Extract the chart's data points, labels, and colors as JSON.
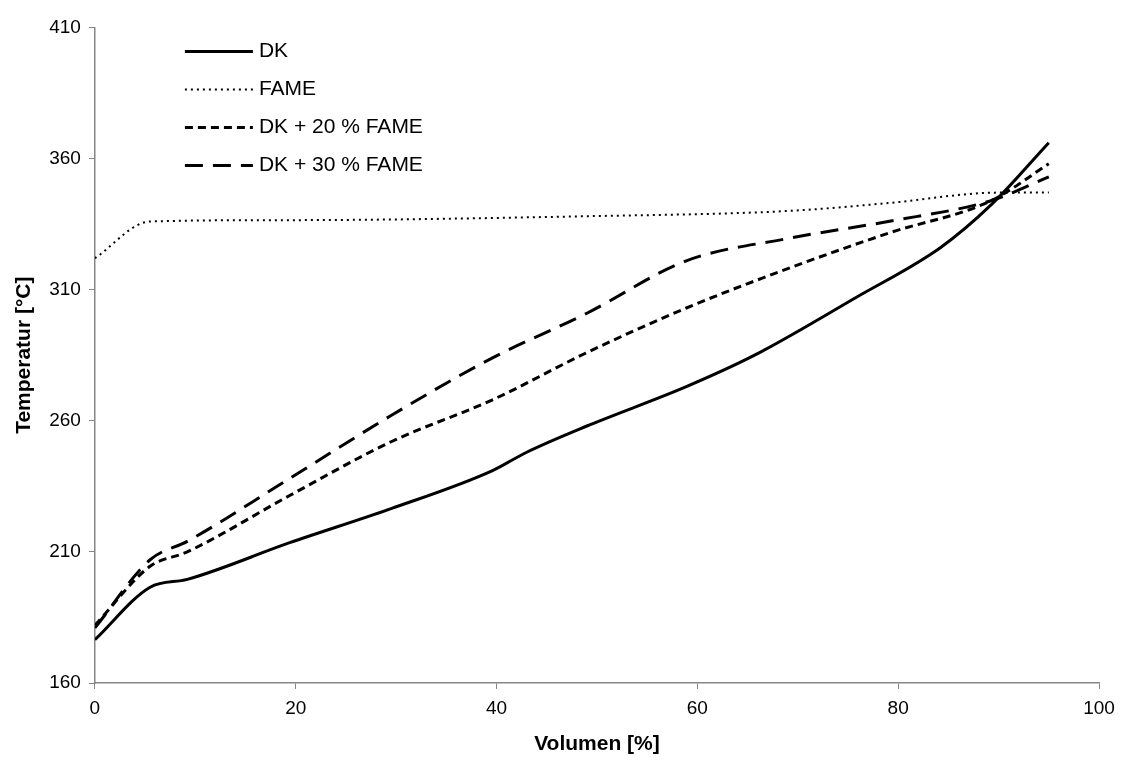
{
  "chart_data": {
    "type": "line",
    "xlabel": "Volumen [%]",
    "ylabel": "Temperatur [°C]",
    "xlim": [
      0,
      100
    ],
    "xticks": [
      0,
      20,
      40,
      60,
      80,
      100
    ],
    "ylim": [
      160,
      410
    ],
    "yticks": [
      160,
      210,
      260,
      310,
      360,
      410
    ],
    "grid": false,
    "legend": "top left",
    "marker": "none",
    "series": [
      {
        "name": "DK",
        "color": "#000000",
        "line_style": "solid",
        "x": [
          0,
          5.5,
          9.2,
          19.4,
          29.5,
          39.6,
          43,
          49,
          58.9,
          65.7,
          75.8,
          84.2,
          89.3,
          95
        ],
        "values": [
          176.5,
          196.5,
          199.5,
          213.5,
          226.5,
          241,
          248,
          258,
          273,
          285,
          307,
          326,
          342.5,
          366
        ]
      },
      {
        "name": "FAME",
        "color": "#000000",
        "line_style": "dotted",
        "x": [
          0,
          5.5,
          19.4,
          49,
          69,
          79,
          90,
          95
        ],
        "values": [
          322,
          336,
          336.5,
          338,
          340,
          343,
          347,
          347
        ]
      },
      {
        "name": "DK + 20 % FAME",
        "color": "#000000",
        "line_style": "dashed",
        "x": [
          0,
          5.5,
          9.2,
          19.4,
          29.5,
          39.6,
          49,
          58.9,
          69,
          79,
          89.3,
          95
        ],
        "values": [
          182,
          204.5,
          210,
          231.5,
          252,
          268,
          286,
          303,
          318,
          331.5,
          344,
          358
        ]
      },
      {
        "name": "DK + 30 % FAME",
        "color": "#000000",
        "line_style": "dashed",
        "x": [
          0,
          5.5,
          9.2,
          19.4,
          29.5,
          39.6,
          49,
          58.9,
          69,
          79,
          89.3,
          95
        ],
        "values": [
          181,
          207,
          214,
          238,
          262,
          284,
          301,
          321,
          329.5,
          336,
          344,
          353
        ]
      }
    ]
  }
}
